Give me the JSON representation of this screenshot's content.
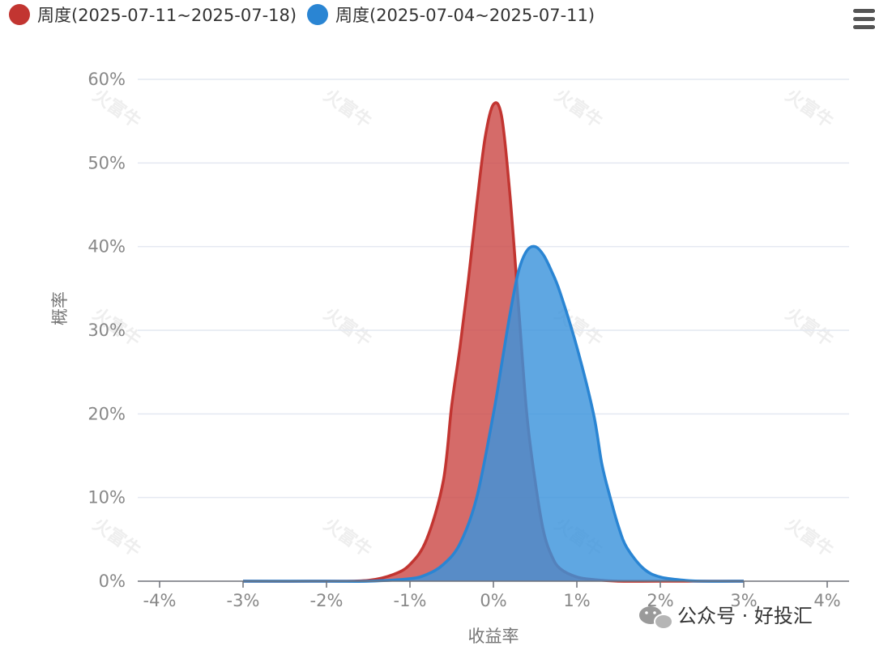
{
  "menu_icon": "hamburger-menu-icon",
  "watermark": "火富牛",
  "footer": {
    "icon": "wechat-icon",
    "text": "公众号 · 好投汇"
  },
  "chart_data": {
    "type": "area",
    "title": "",
    "xlabel": "收益率",
    "ylabel": "概率",
    "xlim": [
      -4,
      4
    ],
    "ylim": [
      0,
      60
    ],
    "x_unit": "%",
    "y_unit": "%",
    "x_ticks": [
      -4,
      -3,
      -2,
      -1,
      0,
      1,
      2,
      3,
      4
    ],
    "y_ticks": [
      0,
      10,
      20,
      30,
      40,
      50,
      60
    ],
    "x_tick_labels": [
      "-4%",
      "-3%",
      "-2%",
      "-1%",
      "0%",
      "1%",
      "2%",
      "3%",
      "4%"
    ],
    "y_tick_labels": [
      "0%",
      "10%",
      "20%",
      "30%",
      "40%",
      "50%",
      "60%"
    ],
    "grid": true,
    "legend_position": "top-left",
    "series": [
      {
        "name": "周度(2025-07-11~2025-07-18)",
        "color": "#c23531",
        "fill": "#cc4a48",
        "x": [
          -3.0,
          -2.0,
          -1.5,
          -1.2,
          -1.0,
          -0.8,
          -0.6,
          -0.5,
          -0.4,
          -0.3,
          -0.2,
          -0.1,
          0.0,
          0.1,
          0.2,
          0.3,
          0.4,
          0.5,
          0.6,
          0.7,
          0.8,
          1.0,
          1.2,
          1.5,
          2.0,
          3.0
        ],
        "y": [
          0.0,
          0.0,
          0.1,
          0.8,
          2.0,
          5.0,
          12.0,
          21.0,
          28.0,
          36.0,
          45.0,
          53.0,
          57.0,
          55.5,
          46.0,
          33.0,
          20.0,
          12.0,
          6.0,
          3.0,
          1.5,
          0.5,
          0.2,
          0.0,
          0.0,
          0.0
        ]
      },
      {
        "name": "周度(2025-07-04~2025-07-11)",
        "color": "#2a85d3",
        "fill": "#3c94dc",
        "x": [
          -3.0,
          -2.0,
          -1.5,
          -1.0,
          -0.8,
          -0.6,
          -0.4,
          -0.2,
          0.0,
          0.1,
          0.2,
          0.3,
          0.4,
          0.5,
          0.6,
          0.7,
          0.8,
          1.0,
          1.2,
          1.3,
          1.4,
          1.5,
          1.6,
          1.8,
          2.0,
          2.3,
          2.5,
          3.0
        ],
        "y": [
          0.0,
          0.0,
          0.0,
          0.3,
          0.8,
          2.0,
          4.5,
          10.0,
          20.0,
          26.0,
          32.0,
          37.0,
          39.5,
          40.0,
          39.0,
          37.0,
          34.5,
          28.0,
          20.0,
          14.0,
          10.0,
          6.5,
          4.0,
          1.5,
          0.5,
          0.1,
          0.0,
          0.0
        ]
      }
    ]
  }
}
